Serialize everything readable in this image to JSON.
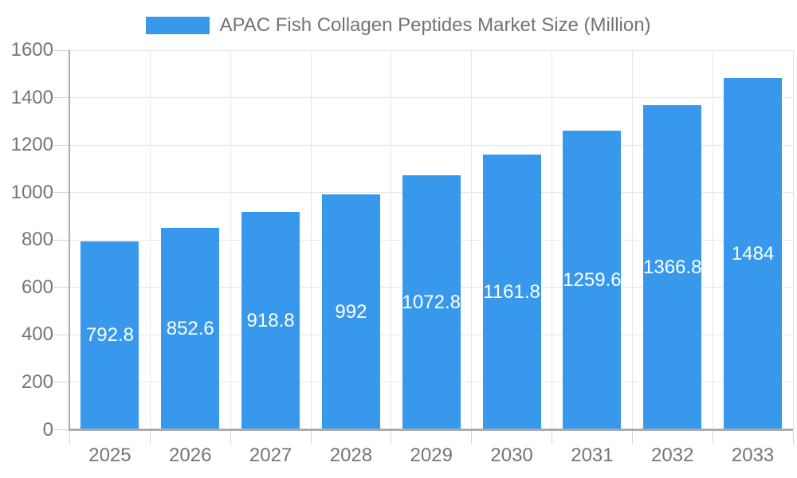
{
  "legend": {
    "label": "APAC Fish Collagen Peptides Market Size (Million)"
  },
  "chart_data": {
    "type": "bar",
    "title": "APAC Fish Collagen Peptides Market Size (Million)",
    "categories": [
      "2025",
      "2026",
      "2027",
      "2028",
      "2029",
      "2030",
      "2031",
      "2032",
      "2033"
    ],
    "values": [
      792.8,
      852.6,
      918.8,
      992,
      1072.8,
      1161.8,
      1259.6,
      1366.8,
      1484
    ],
    "value_labels": [
      "792.8",
      "852.6",
      "918.8",
      "992",
      "1072.8",
      "1161.8",
      "1259.6",
      "1366.8",
      "1484"
    ],
    "xlabel": "",
    "ylabel": "",
    "ylim": [
      0,
      1600
    ],
    "y_ticks": [
      0,
      200,
      400,
      600,
      800,
      1000,
      1200,
      1400,
      1600
    ],
    "y_tick_labels": [
      "0",
      "200",
      "400",
      "600",
      "800",
      "1000",
      "1200",
      "1400",
      "1600"
    ],
    "grid": true,
    "legend_position": "top",
    "value_label_position": "center-of-bar",
    "colors": {
      "bar": "#3899EC",
      "value_label": "#FFFFFF",
      "axis_text": "#757575",
      "legend_text": "#737373",
      "grid": "#E6E6E6",
      "axis_line": "#ABABAB",
      "tick": "#D4D4D4",
      "background": "#FFFFFF"
    }
  }
}
